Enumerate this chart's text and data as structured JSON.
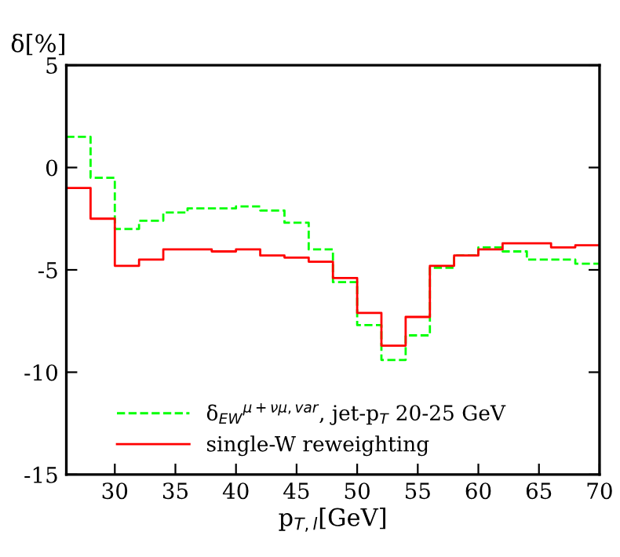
{
  "chart_data": {
    "type": "step",
    "x": [
      26,
      28,
      30,
      32,
      34,
      36,
      38,
      40,
      42,
      44,
      46,
      48,
      50,
      52,
      54,
      56,
      58,
      60,
      62,
      64,
      66,
      68,
      70
    ],
    "series": [
      {
        "name": "δ$_{EW}$$^{μ+νμ,var}$, jet-p$_{T}$ 20-25 GeV",
        "color": "#00ff00",
        "line_style": "dashed",
        "values": [
          1.5,
          -0.5,
          -3.0,
          -2.6,
          -2.2,
          -2.0,
          -2.0,
          -1.9,
          -2.1,
          -2.7,
          -4.0,
          -5.6,
          -7.7,
          -9.4,
          -8.2,
          -4.9,
          -4.3,
          -3.9,
          -4.1,
          -4.5,
          -4.5,
          -4.7,
          -4.7
        ]
      },
      {
        "name": "single-W reweighting",
        "color": "#ff0000",
        "line_style": "solid",
        "values": [
          -1.0,
          -2.5,
          -4.8,
          -4.5,
          -4.0,
          -4.0,
          -4.1,
          -4.0,
          -4.3,
          -4.4,
          -4.6,
          -5.4,
          -7.1,
          -8.7,
          -7.3,
          -4.8,
          -4.3,
          -4.0,
          -3.7,
          -3.7,
          -3.9,
          -3.8,
          -3.8
        ]
      }
    ],
    "xlabel": "p$_{T,l}$[GeV]",
    "ylabel": "δ[%]",
    "xlim": [
      26,
      70
    ],
    "xticks": [
      30,
      35,
      40,
      45,
      50,
      55,
      60,
      65,
      70
    ],
    "ylim": [
      -15,
      5
    ],
    "yticks": [
      -15,
      -10,
      -5,
      0,
      5
    ],
    "grid": false,
    "legend": "bottom left"
  }
}
